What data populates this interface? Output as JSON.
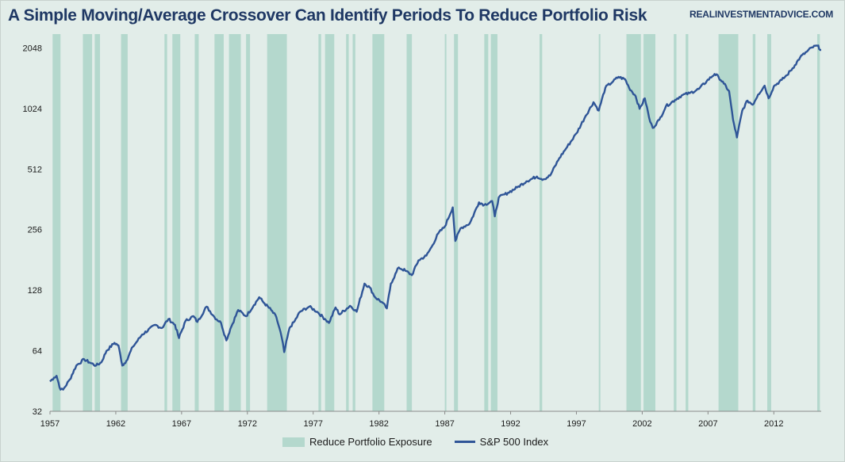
{
  "title": "A Simple Moving/Average Crossover Can Identify Periods To Reduce Portfolio Risk",
  "source": "REALINVESTMENTADVICE.COM",
  "colors": {
    "background": "#e2ede9",
    "band": "#b4d8cd",
    "line": "#2f5597"
  },
  "legend": {
    "band_label": "Reduce Portfolio Exposure",
    "line_label": "S&P 500 Index"
  },
  "chart_data": {
    "type": "line",
    "title": "A Simple Moving/Average Crossover Can Identify Periods To Reduce Portfolio Risk",
    "xlabel": "",
    "ylabel": "",
    "y_scale": "log2",
    "xlim": [
      1957.0,
      2015.6
    ],
    "ylim": [
      32,
      2400
    ],
    "x_ticks": [
      1957,
      1962,
      1967,
      1972,
      1977,
      1982,
      1987,
      1992,
      1997,
      2002,
      2007,
      2012
    ],
    "y_ticks": [
      32,
      64,
      128,
      256,
      512,
      1024,
      2048
    ],
    "series": [
      {
        "name": "S&P 500 Index",
        "points": [
          [
            1957.0,
            45
          ],
          [
            1957.3,
            47
          ],
          [
            1957.5,
            48
          ],
          [
            1957.8,
            41
          ],
          [
            1958.0,
            41
          ],
          [
            1958.5,
            46
          ],
          [
            1959.0,
            54
          ],
          [
            1959.6,
            58
          ],
          [
            1960.0,
            56
          ],
          [
            1960.5,
            54
          ],
          [
            1960.9,
            56
          ],
          [
            1961.3,
            64
          ],
          [
            1961.9,
            70
          ],
          [
            1962.2,
            68
          ],
          [
            1962.5,
            54
          ],
          [
            1962.8,
            57
          ],
          [
            1963.3,
            67
          ],
          [
            1964.0,
            77
          ],
          [
            1965.0,
            86
          ],
          [
            1965.5,
            83
          ],
          [
            1966.0,
            92
          ],
          [
            1966.5,
            86
          ],
          [
            1966.8,
            74
          ],
          [
            1967.3,
            90
          ],
          [
            1967.9,
            95
          ],
          [
            1968.2,
            89
          ],
          [
            1968.9,
            106
          ],
          [
            1969.5,
            94
          ],
          [
            1970.0,
            88
          ],
          [
            1970.4,
            72
          ],
          [
            1970.7,
            82
          ],
          [
            1971.3,
            102
          ],
          [
            1971.9,
            95
          ],
          [
            1972.5,
            108
          ],
          [
            1972.9,
            118
          ],
          [
            1973.3,
            110
          ],
          [
            1973.8,
            102
          ],
          [
            1974.2,
            94
          ],
          [
            1974.6,
            75
          ],
          [
            1974.8,
            63
          ],
          [
            1975.2,
            83
          ],
          [
            1975.6,
            90
          ],
          [
            1976.0,
            100
          ],
          [
            1976.7,
            106
          ],
          [
            1977.3,
            100
          ],
          [
            1977.9,
            92
          ],
          [
            1978.2,
            88
          ],
          [
            1978.7,
            105
          ],
          [
            1979.0,
            97
          ],
          [
            1979.8,
            107
          ],
          [
            1980.2,
            102
          ],
          [
            1980.3,
            100
          ],
          [
            1980.9,
            138
          ],
          [
            1981.3,
            132
          ],
          [
            1981.7,
            118
          ],
          [
            1982.2,
            112
          ],
          [
            1982.6,
            104
          ],
          [
            1982.9,
            138
          ],
          [
            1983.5,
            166
          ],
          [
            1984.0,
            160
          ],
          [
            1984.5,
            152
          ],
          [
            1985.0,
            180
          ],
          [
            1985.6,
            190
          ],
          [
            1986.0,
            210
          ],
          [
            1986.5,
            245
          ],
          [
            1987.0,
            265
          ],
          [
            1987.6,
            330
          ],
          [
            1987.8,
            225
          ],
          [
            1988.2,
            260
          ],
          [
            1988.9,
            275
          ],
          [
            1989.6,
            350
          ],
          [
            1990.0,
            340
          ],
          [
            1990.6,
            355
          ],
          [
            1990.8,
            298
          ],
          [
            1991.1,
            370
          ],
          [
            1991.8,
            390
          ],
          [
            1992.5,
            415
          ],
          [
            1993.2,
            445
          ],
          [
            1994.0,
            470
          ],
          [
            1994.5,
            455
          ],
          [
            1995.0,
            475
          ],
          [
            1995.7,
            580
          ],
          [
            1996.3,
            660
          ],
          [
            1997.0,
            770
          ],
          [
            1997.7,
            940
          ],
          [
            1998.3,
            1100
          ],
          [
            1998.7,
            1000
          ],
          [
            1999.2,
            1300
          ],
          [
            1999.8,
            1400
          ],
          [
            2000.2,
            1470
          ],
          [
            2000.7,
            1430
          ],
          [
            2001.0,
            1300
          ],
          [
            2001.5,
            1180
          ],
          [
            2001.8,
            1020
          ],
          [
            2002.2,
            1150
          ],
          [
            2002.6,
            880
          ],
          [
            2002.8,
            820
          ],
          [
            2003.3,
            900
          ],
          [
            2003.8,
            1050
          ],
          [
            2004.5,
            1130
          ],
          [
            2005.0,
            1190
          ],
          [
            2005.6,
            1220
          ],
          [
            2006.3,
            1280
          ],
          [
            2006.9,
            1400
          ],
          [
            2007.5,
            1520
          ],
          [
            2007.8,
            1470
          ],
          [
            2008.2,
            1360
          ],
          [
            2008.6,
            1250
          ],
          [
            2008.9,
            900
          ],
          [
            2009.2,
            735
          ],
          [
            2009.6,
            1000
          ],
          [
            2010.0,
            1120
          ],
          [
            2010.4,
            1070
          ],
          [
            2010.8,
            1200
          ],
          [
            2011.3,
            1330
          ],
          [
            2011.6,
            1150
          ],
          [
            2012.0,
            1320
          ],
          [
            2012.6,
            1420
          ],
          [
            2013.0,
            1500
          ],
          [
            2013.6,
            1680
          ],
          [
            2014.0,
            1840
          ],
          [
            2014.5,
            1960
          ],
          [
            2014.9,
            2060
          ],
          [
            2015.3,
            2100
          ],
          [
            2015.6,
            2000
          ]
        ]
      }
    ],
    "bands_label": "Reduce Portfolio Exposure",
    "bands": [
      [
        1957.2,
        1957.8
      ],
      [
        1959.5,
        1960.2
      ],
      [
        1960.4,
        1960.8
      ],
      [
        1962.4,
        1962.9
      ],
      [
        1965.7,
        1965.9
      ],
      [
        1966.3,
        1966.9
      ],
      [
        1968.0,
        1968.3
      ],
      [
        1969.5,
        1970.2
      ],
      [
        1970.6,
        1971.5
      ],
      [
        1971.9,
        1972.2
      ],
      [
        1973.5,
        1975.0
      ],
      [
        1977.4,
        1977.6
      ],
      [
        1977.9,
        1978.6
      ],
      [
        1979.5,
        1979.7
      ],
      [
        1980.0,
        1980.2
      ],
      [
        1981.5,
        1982.4
      ],
      [
        1984.1,
        1984.5
      ],
      [
        1987.0,
        1987.1
      ],
      [
        1987.7,
        1988.0
      ],
      [
        1990.0,
        1990.3
      ],
      [
        1990.5,
        1991.0
      ],
      [
        1994.2,
        1994.4
      ],
      [
        1998.7,
        1998.8
      ],
      [
        2000.8,
        2001.9
      ],
      [
        2002.1,
        2003.0
      ],
      [
        2004.4,
        2004.6
      ],
      [
        2005.3,
        2005.5
      ],
      [
        2007.8,
        2009.3
      ],
      [
        2010.4,
        2010.6
      ],
      [
        2011.5,
        2011.8
      ],
      [
        2015.3,
        2015.5
      ]
    ]
  }
}
